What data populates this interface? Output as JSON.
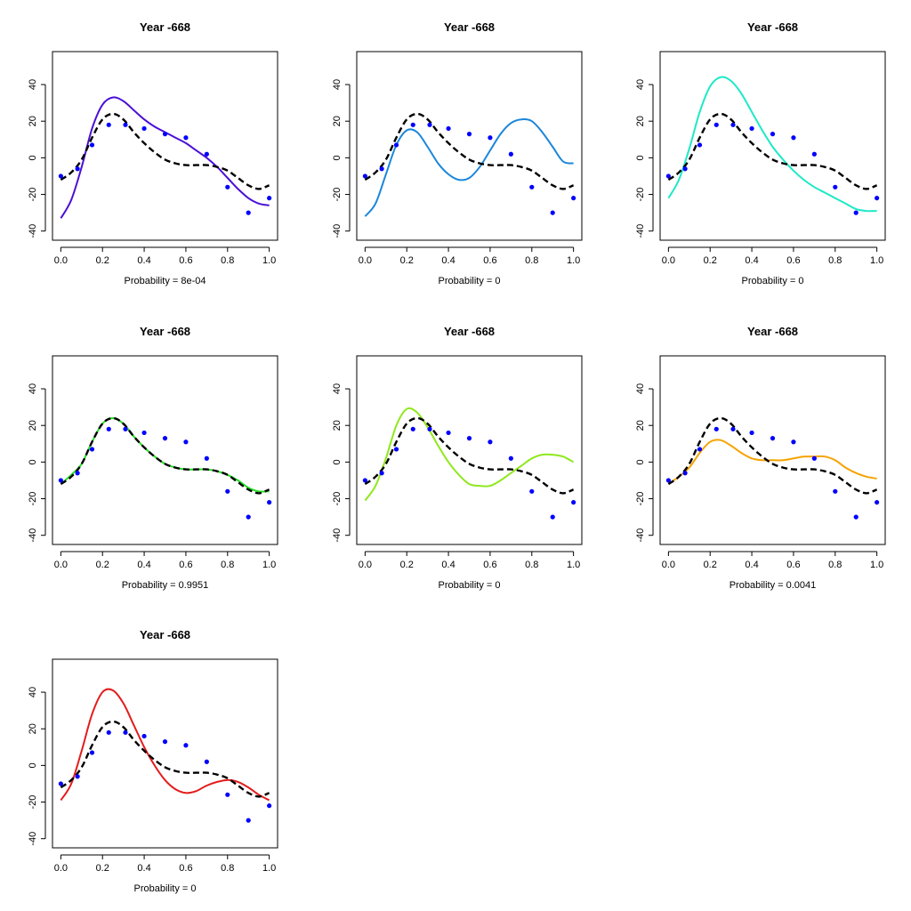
{
  "chart_data": [
    {
      "type": "scatter",
      "title": "Year -668",
      "xlabel": "Probability = 8e-04",
      "ylabel": "",
      "xlim": [
        -0.04,
        1.04
      ],
      "ylim": [
        -45,
        58
      ],
      "xticks": [
        0.0,
        0.2,
        0.4,
        0.6,
        0.8,
        1.0
      ],
      "xtick_labels": [
        "0.0",
        "0.2",
        "0.4",
        "0.6",
        "0.8",
        "1.0"
      ],
      "yticks": [
        -40,
        -20,
        0,
        20,
        40
      ],
      "ytick_labels": [
        "-40",
        "-20",
        "0",
        "20",
        "40"
      ],
      "points": {
        "x": [
          0.0,
          0.08,
          0.15,
          0.23,
          0.31,
          0.4,
          0.5,
          0.6,
          0.7,
          0.8,
          0.9,
          1.0
        ],
        "y": [
          -10,
          -6,
          7,
          18,
          18,
          16,
          13,
          11,
          2,
          -16,
          -30,
          -22
        ],
        "color": "#0000ff"
      },
      "reference": {
        "name": "reference",
        "style": "dashed",
        "color": "#000000",
        "x": [
          0.0,
          0.05,
          0.1,
          0.15,
          0.2,
          0.25,
          0.3,
          0.35,
          0.4,
          0.45,
          0.5,
          0.55,
          0.6,
          0.65,
          0.7,
          0.75,
          0.8,
          0.85,
          0.9,
          0.95,
          1.0
        ],
        "y": [
          -12,
          -8,
          -1,
          11,
          21,
          24,
          21,
          14,
          8,
          3,
          -1,
          -3,
          -4,
          -4,
          -4,
          -5,
          -7,
          -11,
          -15,
          -17,
          -15
        ]
      },
      "fit": {
        "name": "fit",
        "color": "#4b0fd6",
        "x": [
          0.0,
          0.05,
          0.1,
          0.15,
          0.2,
          0.25,
          0.3,
          0.35,
          0.4,
          0.45,
          0.5,
          0.55,
          0.6,
          0.65,
          0.7,
          0.75,
          0.8,
          0.85,
          0.9,
          0.95,
          1.0
        ],
        "y": [
          -33,
          -23,
          -5,
          16,
          29,
          33,
          31,
          26,
          21,
          17,
          14,
          11,
          8,
          4,
          0,
          -5,
          -11,
          -17,
          -22,
          -25,
          -26
        ]
      }
    },
    {
      "type": "scatter",
      "title": "Year -668",
      "xlabel": "Probability = 0",
      "ylabel": "",
      "xlim": [
        -0.04,
        1.04
      ],
      "ylim": [
        -45,
        58
      ],
      "xticks": [
        0.0,
        0.2,
        0.4,
        0.6,
        0.8,
        1.0
      ],
      "xtick_labels": [
        "0.0",
        "0.2",
        "0.4",
        "0.6",
        "0.8",
        "1.0"
      ],
      "yticks": [
        -40,
        -20,
        0,
        20,
        40
      ],
      "ytick_labels": [
        "-40",
        "-20",
        "0",
        "20",
        "40"
      ],
      "points": {
        "x": [
          0.0,
          0.08,
          0.15,
          0.23,
          0.31,
          0.4,
          0.5,
          0.6,
          0.7,
          0.8,
          0.9,
          1.0
        ],
        "y": [
          -10,
          -6,
          7,
          18,
          18,
          16,
          13,
          11,
          2,
          -16,
          -30,
          -22
        ],
        "color": "#0000ff"
      },
      "reference": {
        "name": "reference",
        "style": "dashed",
        "color": "#000000",
        "x": [
          0.0,
          0.05,
          0.1,
          0.15,
          0.2,
          0.25,
          0.3,
          0.35,
          0.4,
          0.45,
          0.5,
          0.55,
          0.6,
          0.65,
          0.7,
          0.75,
          0.8,
          0.85,
          0.9,
          0.95,
          1.0
        ],
        "y": [
          -12,
          -8,
          -1,
          11,
          21,
          24,
          21,
          14,
          8,
          3,
          -1,
          -3,
          -4,
          -4,
          -4,
          -5,
          -7,
          -11,
          -15,
          -17,
          -15
        ]
      },
      "fit": {
        "name": "fit",
        "color": "#1a86db",
        "x": [
          0.0,
          0.05,
          0.1,
          0.15,
          0.2,
          0.25,
          0.3,
          0.35,
          0.4,
          0.45,
          0.5,
          0.55,
          0.6,
          0.65,
          0.7,
          0.75,
          0.8,
          0.85,
          0.9,
          0.95,
          1.0
        ],
        "y": [
          -32,
          -25,
          -9,
          7,
          15,
          14,
          6,
          -3,
          -9,
          -12,
          -11,
          -5,
          4,
          13,
          19,
          21,
          20,
          14,
          6,
          -2,
          -3
        ]
      }
    },
    {
      "type": "scatter",
      "title": "Year -668",
      "xlabel": "Probability = 0",
      "ylabel": "",
      "xlim": [
        -0.04,
        1.04
      ],
      "ylim": [
        -45,
        58
      ],
      "xticks": [
        0.0,
        0.2,
        0.4,
        0.6,
        0.8,
        1.0
      ],
      "xtick_labels": [
        "0.0",
        "0.2",
        "0.4",
        "0.6",
        "0.8",
        "1.0"
      ],
      "yticks": [
        -40,
        -20,
        0,
        20,
        40
      ],
      "ytick_labels": [
        "-40",
        "-20",
        "0",
        "20",
        "40"
      ],
      "points": {
        "x": [
          0.0,
          0.08,
          0.15,
          0.23,
          0.31,
          0.4,
          0.5,
          0.6,
          0.7,
          0.8,
          0.9,
          1.0
        ],
        "y": [
          -10,
          -6,
          7,
          18,
          18,
          16,
          13,
          11,
          2,
          -16,
          -30,
          -22
        ],
        "color": "#0000ff"
      },
      "reference": {
        "name": "reference",
        "style": "dashed",
        "color": "#000000",
        "x": [
          0.0,
          0.05,
          0.1,
          0.15,
          0.2,
          0.25,
          0.3,
          0.35,
          0.4,
          0.45,
          0.5,
          0.55,
          0.6,
          0.65,
          0.7,
          0.75,
          0.8,
          0.85,
          0.9,
          0.95,
          1.0
        ],
        "y": [
          -12,
          -8,
          -1,
          11,
          21,
          24,
          21,
          14,
          8,
          3,
          -1,
          -3,
          -4,
          -4,
          -4,
          -5,
          -7,
          -11,
          -15,
          -17,
          -15
        ]
      },
      "fit": {
        "name": "fit",
        "color": "#1de9c7",
        "x": [
          0.0,
          0.05,
          0.1,
          0.15,
          0.2,
          0.25,
          0.3,
          0.35,
          0.4,
          0.45,
          0.5,
          0.55,
          0.6,
          0.65,
          0.7,
          0.75,
          0.8,
          0.85,
          0.9,
          0.95,
          1.0
        ],
        "y": [
          -22,
          -12,
          5,
          25,
          39,
          44,
          42,
          35,
          25,
          15,
          6,
          -1,
          -7,
          -12,
          -16,
          -19,
          -22,
          -25,
          -28,
          -29,
          -29
        ]
      }
    },
    {
      "type": "scatter",
      "title": "Year -668",
      "xlabel": "Probability = 0.9951",
      "ylabel": "",
      "xlim": [
        -0.04,
        1.04
      ],
      "ylim": [
        -45,
        58
      ],
      "xticks": [
        0.0,
        0.2,
        0.4,
        0.6,
        0.8,
        1.0
      ],
      "xtick_labels": [
        "0.0",
        "0.2",
        "0.4",
        "0.6",
        "0.8",
        "1.0"
      ],
      "yticks": [
        -40,
        -20,
        0,
        20,
        40
      ],
      "ytick_labels": [
        "-40",
        "-20",
        "0",
        "20",
        "40"
      ],
      "points": {
        "x": [
          0.0,
          0.08,
          0.15,
          0.23,
          0.31,
          0.4,
          0.5,
          0.6,
          0.7,
          0.8,
          0.9,
          1.0
        ],
        "y": [
          -10,
          -6,
          7,
          18,
          18,
          16,
          13,
          11,
          2,
          -16,
          -30,
          -22
        ],
        "color": "#0000ff"
      },
      "reference": {
        "name": "reference",
        "style": "dashed",
        "color": "#000000",
        "x": [
          0.0,
          0.05,
          0.1,
          0.15,
          0.2,
          0.25,
          0.3,
          0.35,
          0.4,
          0.45,
          0.5,
          0.55,
          0.6,
          0.65,
          0.7,
          0.75,
          0.8,
          0.85,
          0.9,
          0.95,
          1.0
        ],
        "y": [
          -12,
          -8,
          -1,
          11,
          21,
          24,
          21,
          14,
          8,
          3,
          -1,
          -3,
          -4,
          -4,
          -4,
          -5,
          -7,
          -11,
          -15,
          -17,
          -15
        ]
      },
      "fit": {
        "name": "fit",
        "color": "#22e022",
        "x": [
          0.0,
          0.05,
          0.1,
          0.15,
          0.2,
          0.25,
          0.3,
          0.35,
          0.4,
          0.45,
          0.5,
          0.55,
          0.6,
          0.65,
          0.7,
          0.75,
          0.8,
          0.85,
          0.9,
          0.95,
          1.0
        ],
        "y": [
          -12,
          -7,
          -1,
          11,
          21,
          24,
          21,
          14,
          8,
          3,
          -1,
          -3,
          -4,
          -4,
          -4,
          -5,
          -7,
          -10,
          -14,
          -16,
          -16
        ]
      }
    },
    {
      "type": "scatter",
      "title": "Year -668",
      "xlabel": "Probability = 0",
      "ylabel": "",
      "xlim": [
        -0.04,
        1.04
      ],
      "ylim": [
        -45,
        58
      ],
      "xticks": [
        0.0,
        0.2,
        0.4,
        0.6,
        0.8,
        1.0
      ],
      "xtick_labels": [
        "0.0",
        "0.2",
        "0.4",
        "0.6",
        "0.8",
        "1.0"
      ],
      "yticks": [
        -40,
        -20,
        0,
        20,
        40
      ],
      "ytick_labels": [
        "-40",
        "-20",
        "0",
        "20",
        "40"
      ],
      "points": {
        "x": [
          0.0,
          0.08,
          0.15,
          0.23,
          0.31,
          0.4,
          0.5,
          0.6,
          0.7,
          0.8,
          0.9,
          1.0
        ],
        "y": [
          -10,
          -6,
          7,
          18,
          18,
          16,
          13,
          11,
          2,
          -16,
          -30,
          -22
        ],
        "color": "#0000ff"
      },
      "reference": {
        "name": "reference",
        "style": "dashed",
        "color": "#000000",
        "x": [
          0.0,
          0.05,
          0.1,
          0.15,
          0.2,
          0.25,
          0.3,
          0.35,
          0.4,
          0.45,
          0.5,
          0.55,
          0.6,
          0.65,
          0.7,
          0.75,
          0.8,
          0.85,
          0.9,
          0.95,
          1.0
        ],
        "y": [
          -12,
          -8,
          -1,
          11,
          21,
          24,
          21,
          14,
          8,
          3,
          -1,
          -3,
          -4,
          -4,
          -4,
          -5,
          -7,
          -11,
          -15,
          -17,
          -15
        ]
      },
      "fit": {
        "name": "fit",
        "color": "#8fe81c",
        "x": [
          0.0,
          0.05,
          0.1,
          0.15,
          0.2,
          0.25,
          0.3,
          0.35,
          0.4,
          0.45,
          0.5,
          0.55,
          0.6,
          0.65,
          0.7,
          0.75,
          0.8,
          0.85,
          0.9,
          0.95,
          1.0
        ],
        "y": [
          -21,
          -13,
          2,
          20,
          29,
          27,
          19,
          9,
          0,
          -7,
          -12,
          -13,
          -13,
          -10,
          -6,
          -2,
          2,
          4,
          4,
          3,
          0
        ]
      }
    },
    {
      "type": "scatter",
      "title": "Year -668",
      "xlabel": "Probability = 0.0041",
      "ylabel": "",
      "xlim": [
        -0.04,
        1.04
      ],
      "ylim": [
        -45,
        58
      ],
      "xticks": [
        0.0,
        0.2,
        0.4,
        0.6,
        0.8,
        1.0
      ],
      "xtick_labels": [
        "0.0",
        "0.2",
        "0.4",
        "0.6",
        "0.8",
        "1.0"
      ],
      "yticks": [
        -40,
        -20,
        0,
        20,
        40
      ],
      "ytick_labels": [
        "-40",
        "-20",
        "0",
        "20",
        "40"
      ],
      "points": {
        "x": [
          0.0,
          0.08,
          0.15,
          0.23,
          0.31,
          0.4,
          0.5,
          0.6,
          0.7,
          0.8,
          0.9,
          1.0
        ],
        "y": [
          -10,
          -6,
          7,
          18,
          18,
          16,
          13,
          11,
          2,
          -16,
          -30,
          -22
        ],
        "color": "#0000ff"
      },
      "reference": {
        "name": "reference",
        "style": "dashed",
        "color": "#000000",
        "x": [
          0.0,
          0.05,
          0.1,
          0.15,
          0.2,
          0.25,
          0.3,
          0.35,
          0.4,
          0.45,
          0.5,
          0.55,
          0.6,
          0.65,
          0.7,
          0.75,
          0.8,
          0.85,
          0.9,
          0.95,
          1.0
        ],
        "y": [
          -12,
          -8,
          -1,
          11,
          21,
          24,
          21,
          14,
          8,
          3,
          -1,
          -3,
          -4,
          -4,
          -4,
          -5,
          -7,
          -11,
          -15,
          -17,
          -15
        ]
      },
      "fit": {
        "name": "fit",
        "color": "#f5a300",
        "x": [
          0.0,
          0.05,
          0.1,
          0.15,
          0.2,
          0.25,
          0.3,
          0.35,
          0.4,
          0.45,
          0.5,
          0.55,
          0.6,
          0.65,
          0.7,
          0.75,
          0.8,
          0.85,
          0.9,
          0.95,
          1.0
        ],
        "y": [
          -12,
          -8,
          -3,
          5,
          11,
          12,
          9,
          5,
          2,
          1,
          1,
          1,
          2,
          3,
          3,
          3,
          1,
          -3,
          -6,
          -8,
          -9
        ]
      }
    },
    {
      "type": "scatter",
      "title": "Year -668",
      "xlabel": "Probability = 0",
      "ylabel": "",
      "xlim": [
        -0.04,
        1.04
      ],
      "ylim": [
        -45,
        58
      ],
      "xticks": [
        0.0,
        0.2,
        0.4,
        0.6,
        0.8,
        1.0
      ],
      "xtick_labels": [
        "0.0",
        "0.2",
        "0.4",
        "0.6",
        "0.8",
        "1.0"
      ],
      "yticks": [
        -40,
        -20,
        0,
        20,
        40
      ],
      "ytick_labels": [
        "-40",
        "-20",
        "0",
        "20",
        "40"
      ],
      "points": {
        "x": [
          0.0,
          0.08,
          0.15,
          0.23,
          0.31,
          0.4,
          0.5,
          0.6,
          0.7,
          0.8,
          0.9,
          1.0
        ],
        "y": [
          -10,
          -6,
          7,
          18,
          18,
          16,
          13,
          11,
          2,
          -16,
          -30,
          -22
        ],
        "color": "#0000ff"
      },
      "reference": {
        "name": "reference",
        "style": "dashed",
        "color": "#000000",
        "x": [
          0.0,
          0.05,
          0.1,
          0.15,
          0.2,
          0.25,
          0.3,
          0.35,
          0.4,
          0.45,
          0.5,
          0.55,
          0.6,
          0.65,
          0.7,
          0.75,
          0.8,
          0.85,
          0.9,
          0.95,
          1.0
        ],
        "y": [
          -12,
          -8,
          -1,
          11,
          21,
          24,
          21,
          14,
          8,
          3,
          -1,
          -3,
          -4,
          -4,
          -4,
          -5,
          -7,
          -11,
          -15,
          -17,
          -15
        ]
      },
      "fit": {
        "name": "fit",
        "color": "#e31b1b",
        "x": [
          0.0,
          0.05,
          0.1,
          0.15,
          0.2,
          0.25,
          0.3,
          0.35,
          0.4,
          0.45,
          0.5,
          0.55,
          0.6,
          0.65,
          0.7,
          0.75,
          0.8,
          0.85,
          0.9,
          0.95,
          1.0
        ],
        "y": [
          -19,
          -10,
          8,
          28,
          40,
          41,
          34,
          22,
          10,
          0,
          -8,
          -13,
          -15,
          -14,
          -11,
          -9,
          -8,
          -9,
          -12,
          -16,
          -19
        ]
      }
    }
  ]
}
